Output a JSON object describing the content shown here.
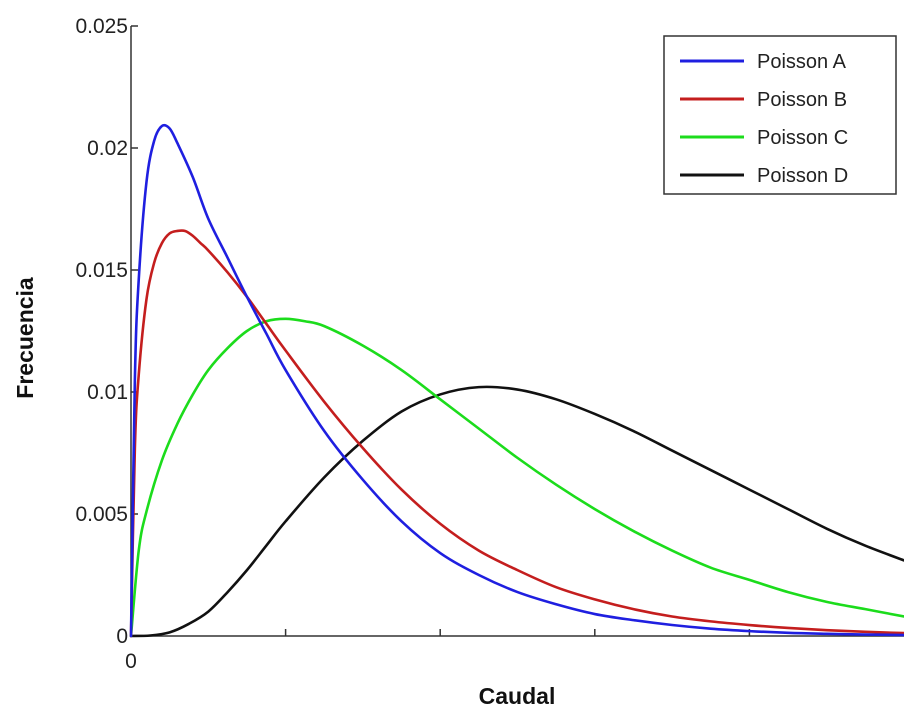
{
  "chart_data": {
    "type": "line",
    "title": "",
    "xlabel": "Caudal",
    "ylabel": "Frecuencia",
    "xlim": [
      0,
      1
    ],
    "ylim": [
      0,
      0.025
    ],
    "x_tick_labels": [
      "0"
    ],
    "y_tick_values": [
      0,
      0.005,
      0.01,
      0.015,
      0.02,
      0.025
    ],
    "y_tick_labels": [
      "0",
      "0.005",
      "0.01",
      "0.015",
      "0.02",
      "0.025"
    ],
    "grid": false,
    "legend_position": "top-right",
    "series": [
      {
        "name": "Poisson A",
        "color": "#1f1fe0",
        "x": [
          0,
          0.005,
          0.01,
          0.02,
          0.03,
          0.04,
          0.05,
          0.06,
          0.08,
          0.1,
          0.125,
          0.15,
          0.175,
          0.2,
          0.25,
          0.3,
          0.35,
          0.4,
          0.45,
          0.5,
          0.55,
          0.6,
          0.65,
          0.7,
          0.75,
          0.8,
          0.85,
          0.9,
          0.95,
          1.0
        ],
        "values": [
          0,
          0.0105,
          0.0146,
          0.0186,
          0.0203,
          0.0209,
          0.0208,
          0.0202,
          0.0188,
          0.0171,
          0.0155,
          0.0139,
          0.0124,
          0.0109,
          0.0084,
          0.0064,
          0.0047,
          0.0034,
          0.0025,
          0.0018,
          0.0013,
          0.0009,
          0.00065,
          0.00045,
          0.0003,
          0.0002,
          0.00013,
          9e-05,
          6e-05,
          4e-05
        ]
      },
      {
        "name": "Poisson B",
        "color": "#c41e1e",
        "x": [
          0,
          0.005,
          0.01,
          0.02,
          0.03,
          0.04,
          0.05,
          0.06,
          0.07,
          0.08,
          0.09,
          0.1,
          0.125,
          0.15,
          0.175,
          0.2,
          0.25,
          0.3,
          0.35,
          0.4,
          0.45,
          0.5,
          0.55,
          0.6,
          0.65,
          0.7,
          0.75,
          0.8,
          0.85,
          0.9,
          0.95,
          1.0
        ],
        "values": [
          0,
          0.0077,
          0.0107,
          0.0138,
          0.0153,
          0.0161,
          0.0165,
          0.0166,
          0.0166,
          0.0164,
          0.0161,
          0.0158,
          0.0149,
          0.0139,
          0.0128,
          0.0117,
          0.0096,
          0.0077,
          0.006,
          0.0046,
          0.0035,
          0.0027,
          0.002,
          0.0015,
          0.0011,
          0.0008,
          0.0006,
          0.00045,
          0.00033,
          0.00024,
          0.00017,
          0.00012
        ]
      },
      {
        "name": "Poisson C",
        "color": "#1cdc1c",
        "x": [
          0,
          0.01,
          0.02,
          0.04,
          0.06,
          0.08,
          0.1,
          0.125,
          0.15,
          0.175,
          0.2,
          0.225,
          0.25,
          0.3,
          0.35,
          0.4,
          0.45,
          0.5,
          0.55,
          0.6,
          0.65,
          0.7,
          0.75,
          0.8,
          0.85,
          0.9,
          0.95,
          1.0
        ],
        "values": [
          0,
          0.0035,
          0.0051,
          0.0072,
          0.0087,
          0.0099,
          0.0109,
          0.0118,
          0.0125,
          0.0129,
          0.013,
          0.0129,
          0.0127,
          0.0119,
          0.0109,
          0.0097,
          0.0085,
          0.0073,
          0.0062,
          0.0052,
          0.0043,
          0.0035,
          0.0028,
          0.0023,
          0.0018,
          0.0014,
          0.0011,
          0.0008
        ]
      },
      {
        "name": "Poisson D",
        "color": "#111111",
        "x": [
          0,
          0.025,
          0.05,
          0.075,
          0.1,
          0.125,
          0.15,
          0.175,
          0.2,
          0.25,
          0.3,
          0.35,
          0.4,
          0.45,
          0.5,
          0.55,
          0.6,
          0.65,
          0.7,
          0.75,
          0.8,
          0.85,
          0.9,
          0.95,
          1.0
        ],
        "values": [
          0,
          2e-05,
          0.00015,
          0.0005,
          0.001,
          0.0018,
          0.0027,
          0.0037,
          0.0047,
          0.0065,
          0.008,
          0.0092,
          0.0099,
          0.0102,
          0.0101,
          0.0097,
          0.0091,
          0.0084,
          0.0076,
          0.0068,
          0.006,
          0.0052,
          0.0044,
          0.0037,
          0.0031
        ]
      }
    ]
  }
}
